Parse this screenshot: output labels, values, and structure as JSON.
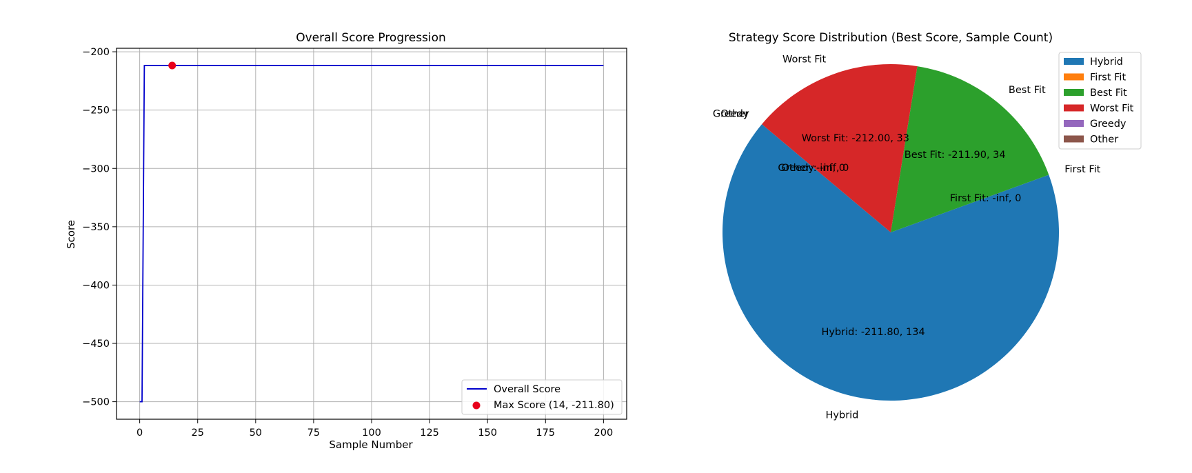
{
  "chart_data": [
    {
      "type": "line",
      "title": "Overall Score Progression",
      "xlabel": "Sample Number",
      "ylabel": "Score",
      "xlim": [
        -10,
        210
      ],
      "ylim": [
        -515,
        -197
      ],
      "x_ticks": [
        0,
        25,
        50,
        75,
        100,
        125,
        150,
        175,
        200
      ],
      "y_ticks": [
        -200,
        -250,
        -300,
        -350,
        -400,
        -450,
        -500
      ],
      "grid": true,
      "legend_position": "lower-right",
      "series": [
        {
          "name": "Overall Score",
          "color": "#0000cc",
          "x": [
            0,
            1,
            2,
            200
          ],
          "y": [
            -500,
            -500,
            -211.8,
            -211.8
          ]
        }
      ],
      "markers": [
        {
          "name": "Max Score (14, -211.80)",
          "x": 14,
          "y": -211.8,
          "color": "#e8001c"
        }
      ]
    },
    {
      "type": "pie",
      "title": "Strategy Score Distribution (Best Score, Sample Count)",
      "legend_position": "top-right",
      "start_angle_deg": 140,
      "slices": [
        {
          "label": "Hybrid",
          "value": 134,
          "best_score": -211.8,
          "autopct": "Hybrid: -211.80, 134",
          "color": "#1f77b4"
        },
        {
          "label": "First Fit",
          "value": 0,
          "best_score": "-inf",
          "autopct": "First Fit: -inf, 0",
          "color": "#ff7f0e"
        },
        {
          "label": "Best Fit",
          "value": 34,
          "best_score": -211.9,
          "autopct": "Best Fit: -211.90, 34",
          "color": "#2ca02c"
        },
        {
          "label": "Worst Fit",
          "value": 33,
          "best_score": -212.0,
          "autopct": "Worst Fit: -212.00, 33",
          "color": "#d62728"
        },
        {
          "label": "Greedy",
          "value": 0,
          "best_score": "-inf",
          "autopct": "Greedy: -inf, 0",
          "color": "#9467bd"
        },
        {
          "label": "Other",
          "value": 0,
          "best_score": "-inf",
          "autopct": "Other: -inf, 0",
          "color": "#8c564b"
        }
      ]
    }
  ]
}
